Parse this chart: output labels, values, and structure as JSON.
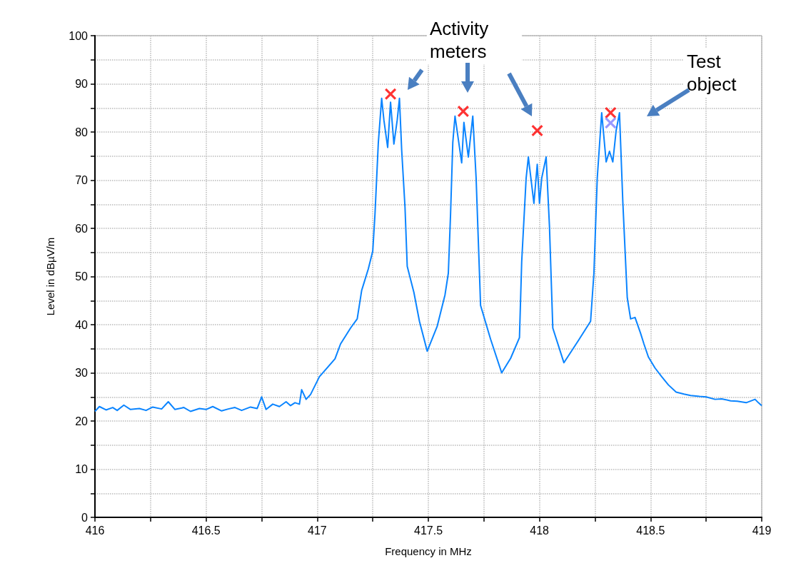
{
  "chart_data": {
    "type": "line",
    "xlabel": "Frequency in MHz",
    "ylabel": "Level in dBµV/m",
    "annotations": [
      "Activity meters",
      "Test object"
    ],
    "xlim": [
      416,
      419
    ],
    "ylim": [
      0,
      100
    ],
    "xticks": [
      416,
      {
        "value": 416.25,
        "label": null
      },
      416.5,
      {
        "value": 416.75,
        "label": null
      },
      417,
      {
        "value": 417.25,
        "label": null
      },
      417.5,
      {
        "value": 417.75,
        "label": null
      },
      418,
      {
        "value": 418.25,
        "label": null
      },
      418.5,
      {
        "value": 418.75,
        "label": null
      },
      419
    ],
    "yticks": [
      0,
      {
        "value": 5,
        "label": null
      },
      10,
      {
        "value": 15,
        "label": null
      },
      20,
      {
        "value": 25,
        "label": null
      },
      30,
      {
        "value": 35,
        "label": null
      },
      40,
      {
        "value": 45,
        "label": null
      },
      50,
      {
        "value": 55,
        "label": null
      },
      60,
      {
        "value": 65,
        "label": null
      },
      70,
      {
        "value": 75,
        "label": null
      },
      80,
      {
        "value": 85,
        "label": null
      },
      90,
      {
        "value": 95,
        "label": null
      },
      100
    ],
    "grid": true,
    "series": [
      {
        "color": "#0a84ff",
        "marker": "none",
        "x": [
          416.0,
          416.02,
          416.05,
          416.08,
          416.1,
          416.13,
          416.16,
          416.2,
          416.23,
          416.26,
          416.3,
          416.33,
          416.36,
          416.4,
          416.43,
          416.47,
          416.5,
          416.53,
          416.57,
          416.6,
          416.63,
          416.66,
          416.7,
          416.73,
          416.75,
          416.77,
          416.8,
          416.83,
          416.86,
          416.88,
          416.9,
          416.92,
          416.93,
          416.95,
          416.97,
          417.01,
          417.08,
          417.105,
          417.15,
          417.18,
          417.2,
          417.23,
          417.25,
          417.26,
          417.275,
          417.29,
          417.3,
          417.317,
          417.33,
          417.345,
          417.36,
          417.37,
          417.38,
          417.395,
          417.405,
          417.435,
          417.46,
          417.495,
          417.54,
          417.575,
          417.59,
          417.6,
          417.61,
          417.62,
          417.65,
          417.66,
          417.68,
          417.7,
          417.715,
          417.73,
          417.735,
          417.78,
          417.83,
          417.87,
          417.91,
          417.92,
          417.94,
          417.95,
          417.975,
          417.99,
          418.0,
          418.01,
          418.03,
          418.045,
          418.06,
          418.11,
          418.175,
          418.23,
          418.245,
          418.26,
          418.28,
          418.3,
          418.315,
          418.33,
          418.345,
          418.36,
          418.375,
          418.395,
          418.41,
          418.43,
          418.455,
          418.47,
          418.49,
          418.52,
          418.55,
          418.58,
          418.615,
          418.65,
          418.68,
          418.72,
          418.75,
          418.79,
          418.82,
          418.86,
          418.89,
          418.93,
          418.97,
          418.985,
          419.0
        ],
        "values": [
          22.0,
          23.0,
          22.3,
          22.8,
          22.2,
          23.3,
          22.4,
          22.6,
          22.2,
          22.9,
          22.5,
          24.0,
          22.4,
          22.8,
          22.0,
          22.6,
          22.4,
          23.0,
          22.1,
          22.5,
          22.8,
          22.2,
          22.9,
          22.6,
          25.0,
          22.4,
          23.5,
          23.0,
          24.0,
          23.2,
          23.8,
          23.5,
          26.5,
          24.5,
          25.5,
          29.2,
          32.9,
          36.0,
          39.3,
          41.2,
          47.1,
          51.6,
          55.3,
          63.0,
          77.8,
          87.0,
          82.5,
          76.8,
          86.2,
          77.5,
          82.5,
          87.0,
          76.3,
          64.4,
          52.1,
          46.7,
          40.7,
          34.5,
          39.7,
          46.2,
          50.7,
          63.0,
          77.8,
          83.3,
          73.6,
          82.0,
          74.8,
          83.3,
          70.4,
          50.7,
          44.0,
          37.0,
          30.0,
          33.0,
          37.3,
          53.0,
          70.4,
          74.8,
          65.2,
          73.3,
          65.2,
          70.4,
          74.8,
          60.4,
          39.3,
          32.1,
          36.7,
          40.7,
          50.7,
          70.4,
          84.0,
          73.8,
          76.0,
          73.8,
          80.3,
          84.0,
          65.5,
          45.6,
          41.2,
          41.5,
          38.2,
          36.0,
          33.3,
          31.0,
          29.2,
          27.5,
          26.0,
          25.6,
          25.3,
          25.1,
          25.0,
          24.5,
          24.6,
          24.2,
          24.1,
          23.8,
          24.5,
          23.8,
          23.2
        ]
      },
      {
        "type": "scatter",
        "color": "#ff0000",
        "marker": "cross",
        "x": [
          417.33,
          417.657,
          417.99,
          418.32
        ],
        "values": [
          87.9,
          84.3,
          80.3,
          84.0
        ]
      },
      {
        "type": "scatter",
        "color": "#8080ff",
        "marker": "cross",
        "x": [
          418.32
        ],
        "values": [
          81.9
        ]
      }
    ]
  }
}
